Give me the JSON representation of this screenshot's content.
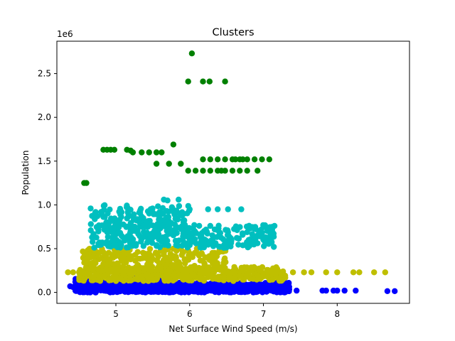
{
  "chart_data": {
    "type": "scatter",
    "title": "Clusters",
    "xlabel": "Net Surface Wind Speed (m/s)",
    "ylabel": "Population",
    "y_offset_label": "1e6",
    "xlim": [
      4.2,
      8.98
    ],
    "ylim": [
      -125000,
      2870000
    ],
    "x_ticks": [
      5,
      6,
      7,
      8
    ],
    "y_ticks": [
      0.0,
      0.5,
      1.0,
      1.5,
      2.0,
      2.5
    ],
    "y_tick_labels": [
      "0.0",
      "0.5",
      "1.0",
      "1.5",
      "2.0",
      "2.5"
    ],
    "grid": false,
    "legend": "none",
    "series": [
      {
        "color": "#0000ff",
        "clouds": [
          {
            "x": [
              4.45,
              7.35
            ],
            "y": [
              0,
              110000
            ],
            "count": 900,
            "seed": 11
          },
          {
            "x": [
              4.45,
              5.8
            ],
            "y": [
              0,
              170000
            ],
            "count": 220,
            "seed": 12
          }
        ],
        "points": [
          [
            4.38,
            70000
          ],
          [
            4.42,
            60000
          ],
          [
            7.45,
            20000
          ],
          [
            7.8,
            20000
          ],
          [
            7.85,
            20000
          ],
          [
            7.95,
            20000
          ],
          [
            8.0,
            20000
          ],
          [
            8.1,
            20000
          ],
          [
            8.25,
            20000
          ],
          [
            8.68,
            15000
          ],
          [
            8.78,
            15000
          ]
        ]
      },
      {
        "color": "#bfbf00",
        "clouds": [
          {
            "x": [
              4.5,
              7.3
            ],
            "y": [
              130000,
              290000
            ],
            "count": 520,
            "seed": 21
          },
          {
            "x": [
              4.55,
              6.5
            ],
            "y": [
              250000,
              500000
            ],
            "count": 260,
            "seed": 22
          }
        ],
        "points": [
          [
            4.35,
            230000
          ],
          [
            4.42,
            230000
          ],
          [
            7.4,
            230000
          ],
          [
            7.55,
            230000
          ],
          [
            7.65,
            230000
          ],
          [
            7.85,
            230000
          ],
          [
            8.0,
            230000
          ],
          [
            8.22,
            230000
          ],
          [
            8.3,
            230000
          ],
          [
            8.5,
            230000
          ],
          [
            8.65,
            230000
          ]
        ]
      },
      {
        "color": "#00bfbf",
        "clouds": [
          {
            "x": [
              4.65,
              7.15
            ],
            "y": [
              510000,
              770000
            ],
            "count": 320,
            "seed": 31
          },
          {
            "x": [
              4.65,
              6.0
            ],
            "y": [
              760000,
              1000000
            ],
            "count": 120,
            "seed": 32
          }
        ],
        "points": [
          [
            5.65,
            1060000
          ],
          [
            5.7,
            1050000
          ],
          [
            5.85,
            1060000
          ],
          [
            4.72,
            900000
          ],
          [
            4.8,
            920000
          ],
          [
            6.0,
            950000
          ],
          [
            6.25,
            950000
          ],
          [
            6.38,
            950000
          ],
          [
            6.52,
            950000
          ],
          [
            6.7,
            950000
          ],
          [
            7.15,
            760000
          ],
          [
            6.95,
            640000
          ],
          [
            6.8,
            600000
          ]
        ]
      },
      {
        "color": "#008000",
        "clouds": [],
        "points": [
          [
            6.03,
            2730000
          ],
          [
            5.98,
            2410000
          ],
          [
            6.18,
            2410000
          ],
          [
            6.27,
            2410000
          ],
          [
            6.48,
            2410000
          ],
          [
            5.78,
            1690000
          ],
          [
            4.83,
            1630000
          ],
          [
            4.88,
            1630000
          ],
          [
            4.93,
            1630000
          ],
          [
            4.98,
            1630000
          ],
          [
            5.15,
            1630000
          ],
          [
            5.2,
            1620000
          ],
          [
            5.23,
            1600000
          ],
          [
            5.35,
            1600000
          ],
          [
            5.45,
            1600000
          ],
          [
            5.55,
            1600000
          ],
          [
            5.62,
            1600000
          ],
          [
            5.55,
            1470000
          ],
          [
            5.72,
            1470000
          ],
          [
            5.88,
            1470000
          ],
          [
            6.18,
            1520000
          ],
          [
            6.28,
            1520000
          ],
          [
            6.38,
            1520000
          ],
          [
            6.48,
            1520000
          ],
          [
            6.58,
            1520000
          ],
          [
            6.68,
            1520000
          ],
          [
            6.78,
            1520000
          ],
          [
            6.88,
            1520000
          ],
          [
            6.98,
            1520000
          ],
          [
            7.08,
            1520000
          ],
          [
            5.98,
            1390000
          ],
          [
            6.08,
            1390000
          ],
          [
            6.18,
            1390000
          ],
          [
            6.28,
            1390000
          ],
          [
            6.38,
            1390000
          ],
          [
            6.48,
            1390000
          ],
          [
            6.58,
            1390000
          ],
          [
            6.68,
            1390000
          ],
          [
            6.78,
            1390000
          ],
          [
            6.92,
            1390000
          ],
          [
            6.43,
            1390000
          ],
          [
            6.62,
            1520000
          ],
          [
            6.72,
            1520000
          ],
          [
            4.57,
            1250000
          ],
          [
            4.6,
            1250000
          ]
        ]
      }
    ]
  }
}
